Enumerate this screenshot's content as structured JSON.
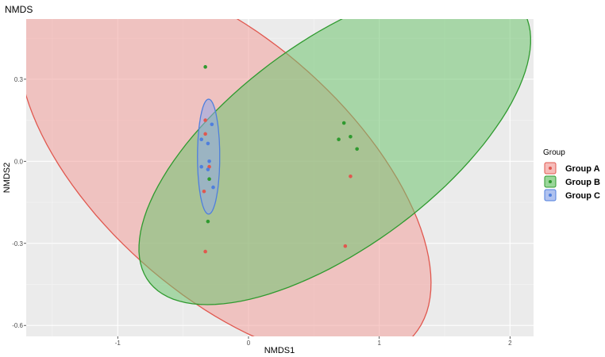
{
  "chart_data": {
    "type": "scatter",
    "title": "NMDS",
    "xlabel": "NMDS1",
    "ylabel": "NMDS2",
    "xlim": [
      -1.7,
      2.18
    ],
    "ylim": [
      -0.64,
      0.52
    ],
    "x_ticks": [
      -1,
      0,
      1,
      2
    ],
    "y_ticks": [
      -0.6,
      -0.3,
      0.0,
      0.3
    ],
    "x_tick_labels": [
      "-1",
      "0",
      "1",
      "2"
    ],
    "y_tick_labels": [
      "-0.6",
      "-0.3",
      "0.0",
      "0.3"
    ],
    "grid": true,
    "legend": {
      "title": "Group",
      "placement": "right"
    },
    "series": [
      {
        "name": "Group A",
        "color": "#e0584f",
        "fill": "#f2a09c",
        "points": [
          {
            "x": -0.33,
            "y": 0.15
          },
          {
            "x": -0.33,
            "y": 0.1
          },
          {
            "x": -0.3,
            "y": -0.02
          },
          {
            "x": -0.34,
            "y": -0.11
          },
          {
            "x": -0.33,
            "y": -0.33
          },
          {
            "x": 0.74,
            "y": -0.31
          },
          {
            "x": 0.78,
            "y": -0.055
          }
        ],
        "ellipse": {
          "cx": -0.18,
          "cy": -0.02,
          "rx": 1.64,
          "ry": 0.545,
          "angle_deg": -17
        }
      },
      {
        "name": "Group B",
        "color": "#2f9a2f",
        "fill": "#6fc46f",
        "points": [
          {
            "x": -0.33,
            "y": 0.345
          },
          {
            "x": -0.3,
            "y": -0.065
          },
          {
            "x": -0.31,
            "y": -0.22
          },
          {
            "x": 0.73,
            "y": 0.14
          },
          {
            "x": 0.69,
            "y": 0.08
          },
          {
            "x": 0.78,
            "y": 0.09
          },
          {
            "x": 0.83,
            "y": 0.045
          }
        ],
        "ellipse": {
          "cx": 0.66,
          "cy": 0.062,
          "rx": 1.55,
          "ry": 0.43,
          "angle_deg": 15.5
        }
      },
      {
        "name": "Group C",
        "color": "#4f7fdd",
        "fill": "#8fa8e8",
        "points": [
          {
            "x": -0.28,
            "y": 0.135
          },
          {
            "x": -0.36,
            "y": 0.08
          },
          {
            "x": -0.31,
            "y": 0.065
          },
          {
            "x": -0.3,
            "y": 0.0
          },
          {
            "x": -0.36,
            "y": -0.02
          },
          {
            "x": -0.31,
            "y": -0.03
          },
          {
            "x": -0.27,
            "y": -0.095
          }
        ],
        "ellipse": {
          "cx": -0.305,
          "cy": 0.017,
          "rx": 0.085,
          "ry": 0.21,
          "angle_deg": 0
        }
      }
    ]
  }
}
